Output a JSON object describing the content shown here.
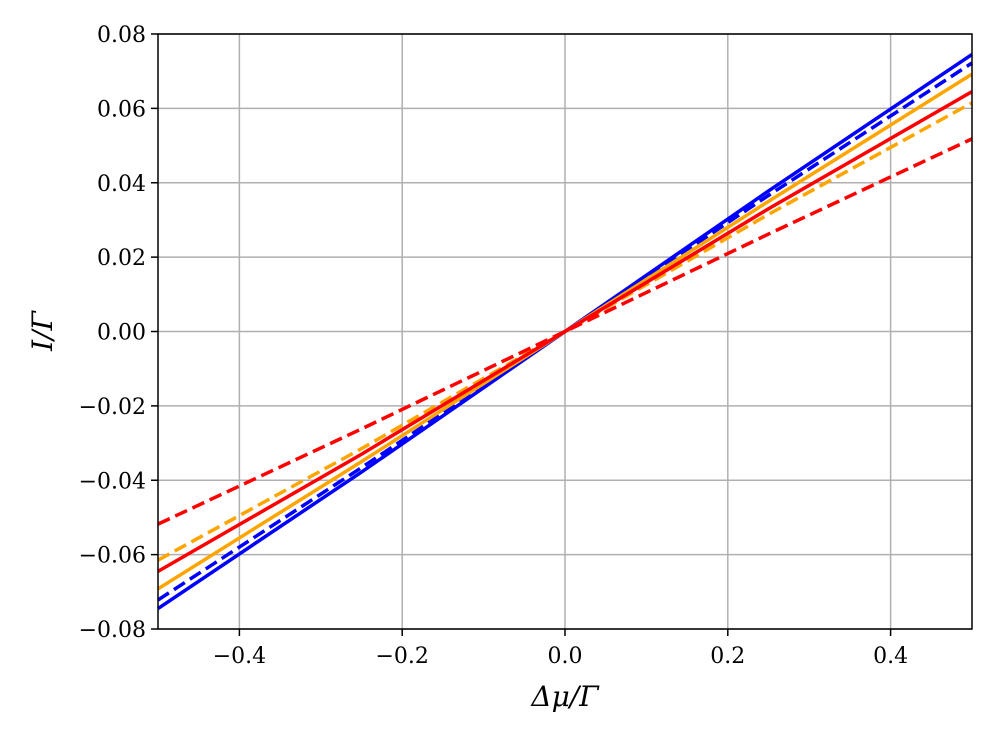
{
  "chart_data": {
    "type": "line",
    "xlabel": "Δμ/Γ",
    "ylabel": "I/Γ",
    "xlim": [
      -0.5,
      0.5
    ],
    "ylim": [
      -0.08,
      0.08
    ],
    "grid": true,
    "x_ticks": [
      -0.4,
      -0.2,
      0.0,
      0.2,
      0.4
    ],
    "x_tick_labels": [
      "−0.4",
      "−0.2",
      "0.0",
      "0.2",
      "0.4"
    ],
    "y_ticks": [
      -0.08,
      -0.06,
      -0.04,
      -0.02,
      0.0,
      0.02,
      0.04,
      0.06,
      0.08
    ],
    "y_tick_labels": [
      "−0.08",
      "−0.06",
      "−0.04",
      "−0.02",
      "0.00",
      "0.02",
      "0.04",
      "0.06",
      "0.08"
    ],
    "series": [
      {
        "color": "#0000ff",
        "style": "solid",
        "x": [
          -0.5,
          -0.25,
          0.0,
          0.25,
          0.5
        ],
        "y": [
          -0.0745,
          -0.0378,
          0.0,
          0.0378,
          0.0745
        ]
      },
      {
        "color": "#0000ff",
        "style": "dashed",
        "x": [
          -0.5,
          -0.25,
          0.0,
          0.25,
          0.5
        ],
        "y": [
          -0.0722,
          -0.0366,
          0.0,
          0.0366,
          0.0722
        ]
      },
      {
        "color": "#ffa500",
        "style": "solid",
        "x": [
          -0.5,
          -0.25,
          0.0,
          0.25,
          0.5
        ],
        "y": [
          -0.0692,
          -0.035,
          0.0,
          0.035,
          0.0692
        ]
      },
      {
        "color": "#ffa500",
        "style": "dashed",
        "x": [
          -0.5,
          -0.25,
          0.0,
          0.25,
          0.5
        ],
        "y": [
          -0.0615,
          -0.0315,
          0.0,
          0.0315,
          0.0615
        ]
      },
      {
        "color": "#ff0000",
        "style": "solid",
        "x": [
          -0.5,
          -0.25,
          0.0,
          0.25,
          0.5
        ],
        "y": [
          -0.0645,
          -0.033,
          0.0,
          0.033,
          0.0645
        ]
      },
      {
        "color": "#ff0000",
        "style": "dashed",
        "x": [
          -0.5,
          -0.25,
          0.0,
          0.25,
          0.5
        ],
        "y": [
          -0.0518,
          -0.0262,
          0.0,
          0.0262,
          0.0518
        ]
      }
    ]
  }
}
